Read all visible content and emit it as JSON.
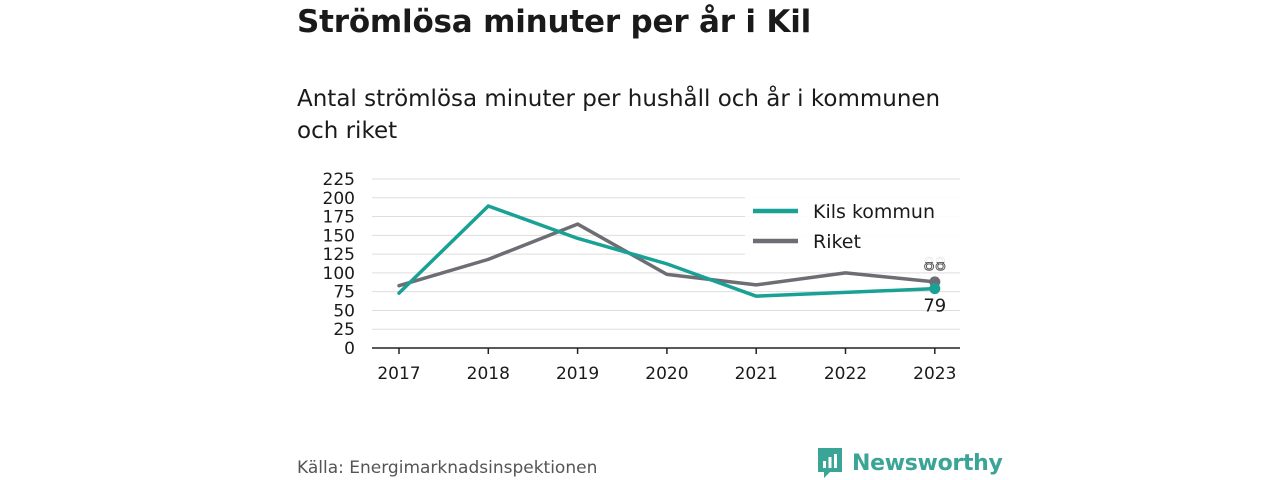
{
  "title": "Strömlösa minuter per år i Kil",
  "subtitle": "Antal strömlösa minuter per hushåll och år i kommunen och riket",
  "source": "Källa: Energimarknadsinspektionen",
  "brand": {
    "name": "Newsworthy",
    "logo_icon": "newsworthy-chart-bubble-icon",
    "color": "#3aa597"
  },
  "chart_data": {
    "type": "line",
    "x": [
      "2017",
      "2018",
      "2019",
      "2020",
      "2021",
      "2022",
      "2023"
    ],
    "ylim": [
      0,
      225
    ],
    "yticks": [
      "0",
      "25",
      "50",
      "75",
      "100",
      "125",
      "150",
      "175",
      "200",
      "225"
    ],
    "grid": true,
    "legend_position": "top-right",
    "series": [
      {
        "name": "Kils kommun",
        "color": "#1aa196",
        "values": [
          73,
          189,
          146,
          112,
          69,
          74,
          79
        ],
        "end_label": "79"
      },
      {
        "name": "Riket",
        "color": "#6e6d73",
        "values": [
          83,
          118,
          165,
          98,
          84,
          100,
          88
        ],
        "end_label": "88"
      }
    ]
  }
}
